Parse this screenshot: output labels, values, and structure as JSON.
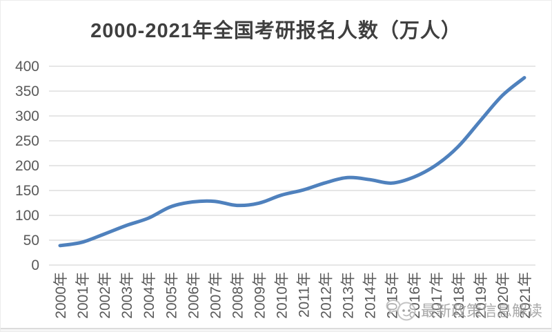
{
  "chart_data": {
    "type": "line",
    "title": "2000-2021年全国考研报名人数（万人）",
    "categories": [
      "2000年",
      "2001年",
      "2002年",
      "2003年",
      "2004年",
      "2005年",
      "2006年",
      "2007年",
      "2008年",
      "2009年",
      "2010年",
      "2011年",
      "2012年",
      "2013年",
      "2014年",
      "2015年",
      "2016年",
      "2017年",
      "2018年",
      "2019年",
      "2020年",
      "2021年"
    ],
    "values": [
      39.2,
      46,
      62.4,
      79.7,
      94.5,
      117.2,
      127.1,
      128.2,
      120,
      124.6,
      140.6,
      151.1,
      165.6,
      176,
      172,
      164.9,
      177,
      201,
      238,
      290,
      341,
      377
    ],
    "xlabel": "",
    "ylabel": "",
    "ylim": [
      0,
      400
    ],
    "ytick_step": 50,
    "yticks": [
      0,
      50,
      100,
      150,
      200,
      250,
      300,
      350,
      400
    ],
    "grid": true,
    "legend": "none",
    "smoothed": true,
    "colors": {
      "line": "#4f81bd",
      "gridline": "#d6d6d6",
      "axis_text": "#595959",
      "title_text": "#3f3f3f"
    }
  },
  "watermark": {
    "icon": "chat-face-icon",
    "label": "最新政策信息解读"
  }
}
